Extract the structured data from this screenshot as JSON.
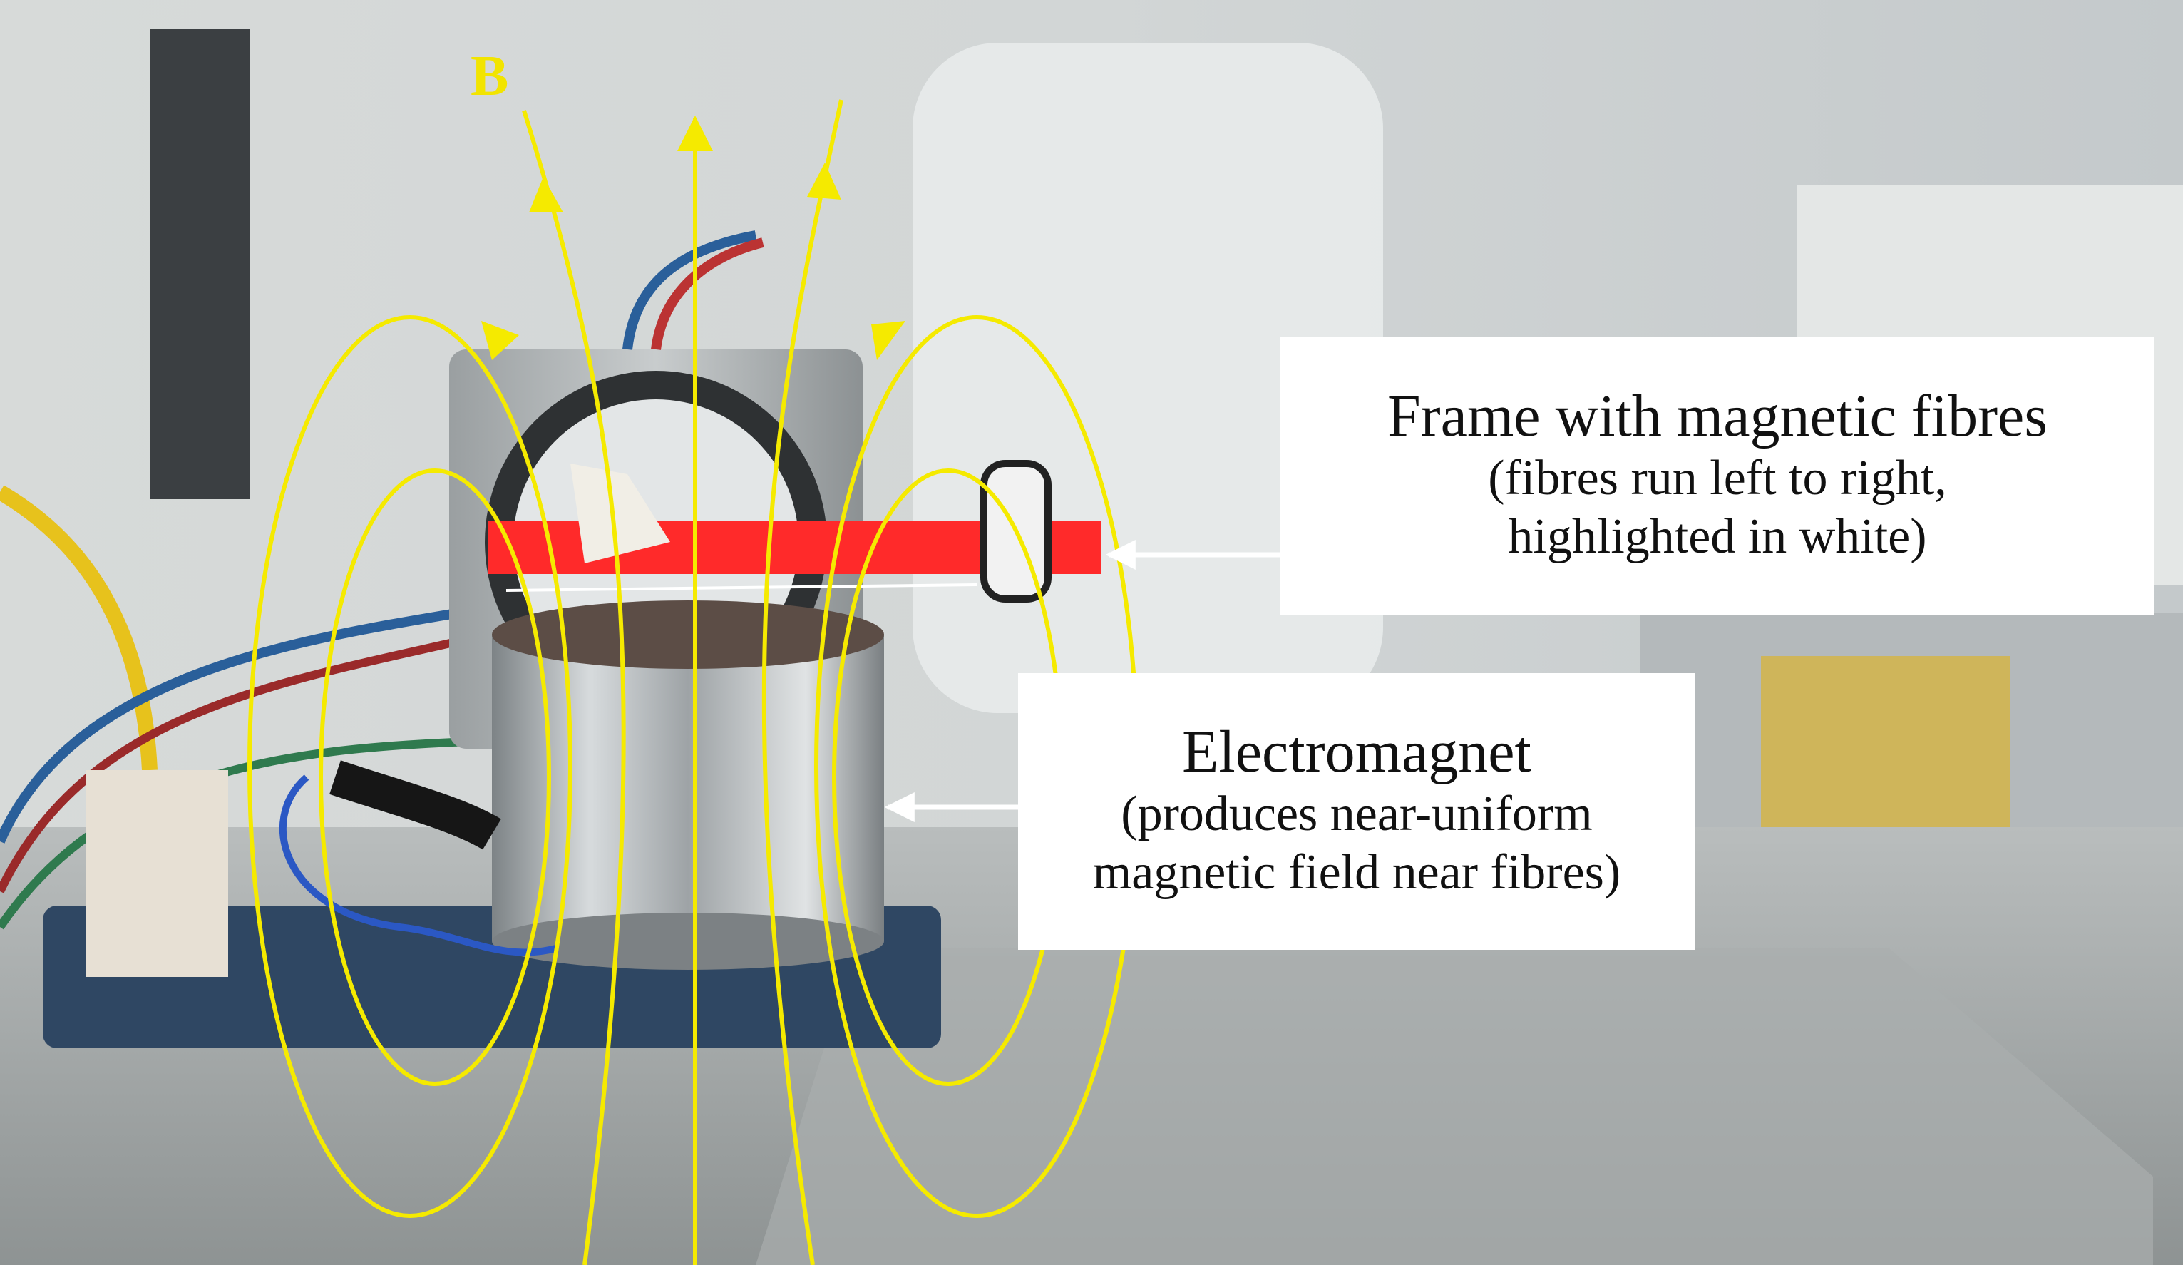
{
  "field_label": "B",
  "labels": {
    "frame": {
      "title": "Frame with magnetic fibres",
      "subtitle_line1": "(fibres run left to right,",
      "subtitle_line2": "highlighted in white)"
    },
    "electromagnet": {
      "title": "Electromagnet",
      "subtitle_line1": "(produces near-uniform",
      "subtitle_line2": "magnetic field near fibres)"
    }
  },
  "colors": {
    "field_lines": "#f5ea00",
    "frame": "#ff2a2a",
    "arrows": "#ffffff",
    "label_background": "#ffffff"
  }
}
